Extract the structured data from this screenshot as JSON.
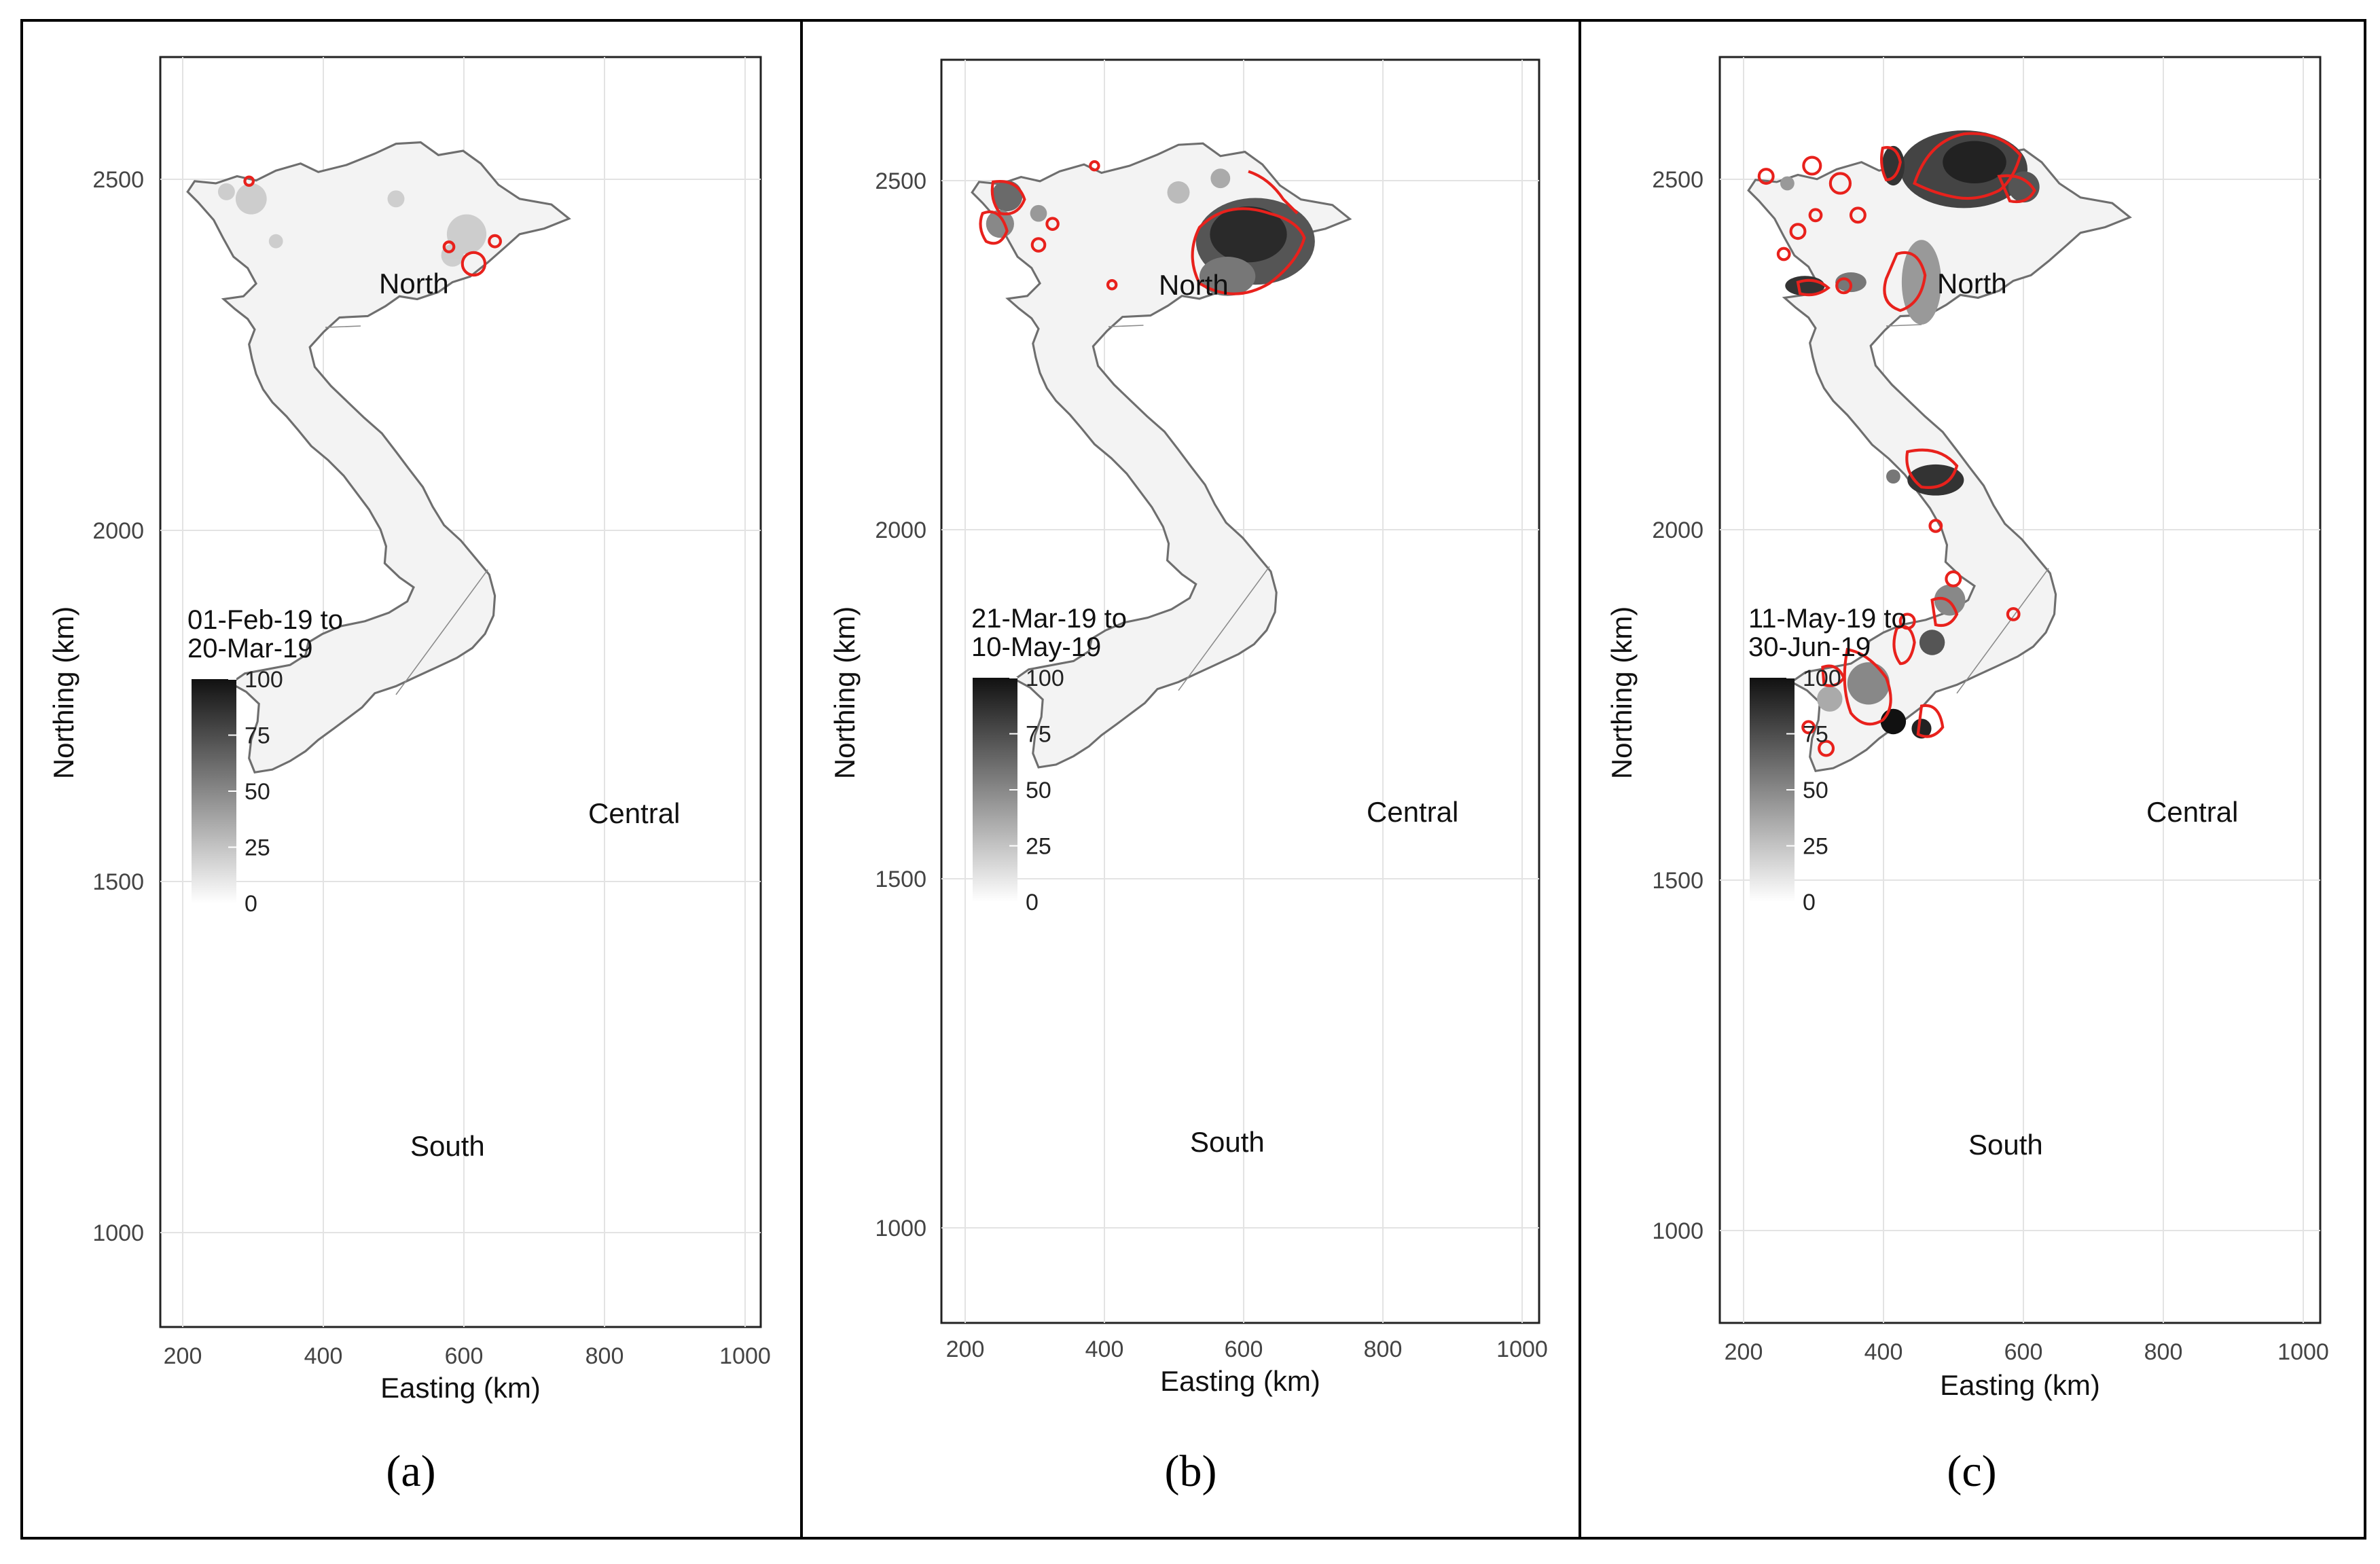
{
  "axis_labels": {
    "x": "Easting (km)",
    "y": "Northing (km)"
  },
  "x_ticks": [
    "200",
    "400",
    "600",
    "800",
    "1000"
  ],
  "y_ticks": [
    "1000",
    "1500",
    "2000",
    "2500"
  ],
  "legend_ticks": [
    "100",
    "75",
    "50",
    "25",
    "0"
  ],
  "regions": [
    "North",
    "Central",
    "South"
  ],
  "colors": {
    "hotspot_contour": "#e8211c",
    "border": "#6e6e6e",
    "land": "#f3f3f3",
    "scale_high": "#111111",
    "scale_low": "#ffffff"
  },
  "panels": [
    {
      "caption": "(a)",
      "legend_title": [
        "01-Feb-19 to",
        "20-Mar-19"
      ]
    },
    {
      "caption": "(b)",
      "legend_title": [
        "21-Mar-19 to",
        "10-May-19"
      ]
    },
    {
      "caption": "(c)",
      "legend_title": [
        "11-May-19 to",
        "30-Jun-19"
      ]
    }
  ]
}
